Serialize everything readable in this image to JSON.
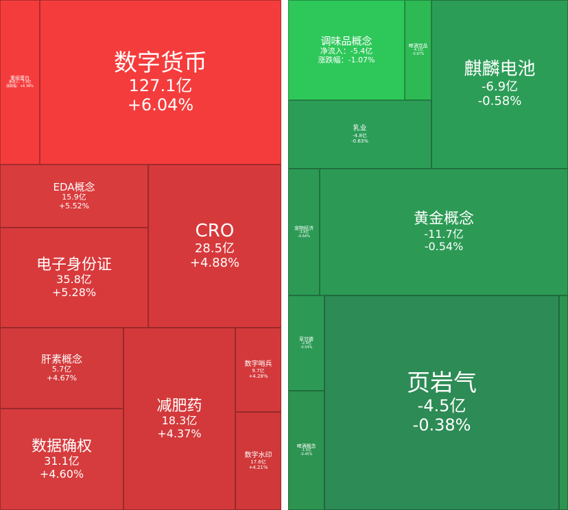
{
  "chart_data": [
    {
      "type": "treemap",
      "value_unit": "亿",
      "items": [
        {
          "id": "szhb",
          "name": "数字货币",
          "inflow": "127.1亿",
          "change": "+6.04%",
          "color": "#f53c3c"
        },
        {
          "id": "czdb",
          "name": "重组蛋白",
          "inflow": "净流入：7.9亿",
          "change": "涨跌幅：+6.38%",
          "color": "#f53c3c"
        },
        {
          "id": "eda",
          "name": "EDA概念",
          "inflow": "15.9亿",
          "change": "+5.52%",
          "color": "#d93c3d"
        },
        {
          "id": "cro",
          "name": "CRO",
          "inflow": "28.5亿",
          "change": "+4.88%",
          "color": "#d6393b"
        },
        {
          "id": "dzsfz",
          "name": "电子身份证",
          "inflow": "35.8亿",
          "change": "+5.28%",
          "color": "#d83a3c"
        },
        {
          "id": "gsgn",
          "name": "肝素概念",
          "inflow": "5.7亿",
          "change": "+4.67%",
          "color": "#d33a3c"
        },
        {
          "id": "jfy",
          "name": "减肥药",
          "inflow": "18.3亿",
          "change": "+4.37%",
          "color": "#d3393b"
        },
        {
          "id": "szsb",
          "name": "数字哨兵",
          "inflow": "9.7亿",
          "change": "+4.28%",
          "color": "#d3393b"
        },
        {
          "id": "sjqq",
          "name": "数据确权",
          "inflow": "31.1亿",
          "change": "+4.60%",
          "color": "#d63b3d"
        },
        {
          "id": "szsy",
          "name": "数字水印",
          "inflow": "17.6亿",
          "change": "+4.21%",
          "color": "#d0383a"
        },
        {
          "id": "twp",
          "name": "调味品概念",
          "inflow": "净流入：-5.4亿",
          "change": "涨跌幅：-1.07%",
          "color": "#2ec85a"
        },
        {
          "id": "sjdp",
          "name": "啤酒饮品",
          "inflow": "-4.1亿",
          "change": "-0.97%",
          "color": "#2db954"
        },
        {
          "id": "qldc",
          "name": "麒麟电池",
          "inflow": "-6.9亿",
          "change": "-0.58%",
          "color": "#2c9d57"
        },
        {
          "id": "ry",
          "name": "乳业",
          "inflow": "-4.8亿",
          "change": "-0.63%",
          "color": "#2c9d57"
        },
        {
          "id": "cwjj",
          "name": "宠物经济",
          "inflow": "-3.8亿",
          "change": "-0.64%",
          "color": "#2c9a55"
        },
        {
          "id": "hjgn",
          "name": "黄金概念",
          "inflow": "-11.7亿",
          "change": "-0.54%",
          "color": "#2c9a55"
        },
        {
          "id": "cgt",
          "name": "草甘膦",
          "inflow": "-2.9亿",
          "change": "-0.54%",
          "color": "#2c9a55"
        },
        {
          "id": "yyq",
          "name": "页岩气",
          "inflow": "-4.5亿",
          "change": "-0.38%",
          "color": "#2d8b55"
        },
        {
          "id": "pjgn",
          "name": "啤酒概念",
          "inflow": "-1.0亿",
          "change": "-0.45%",
          "color": "#2c9350"
        }
      ]
    }
  ]
}
